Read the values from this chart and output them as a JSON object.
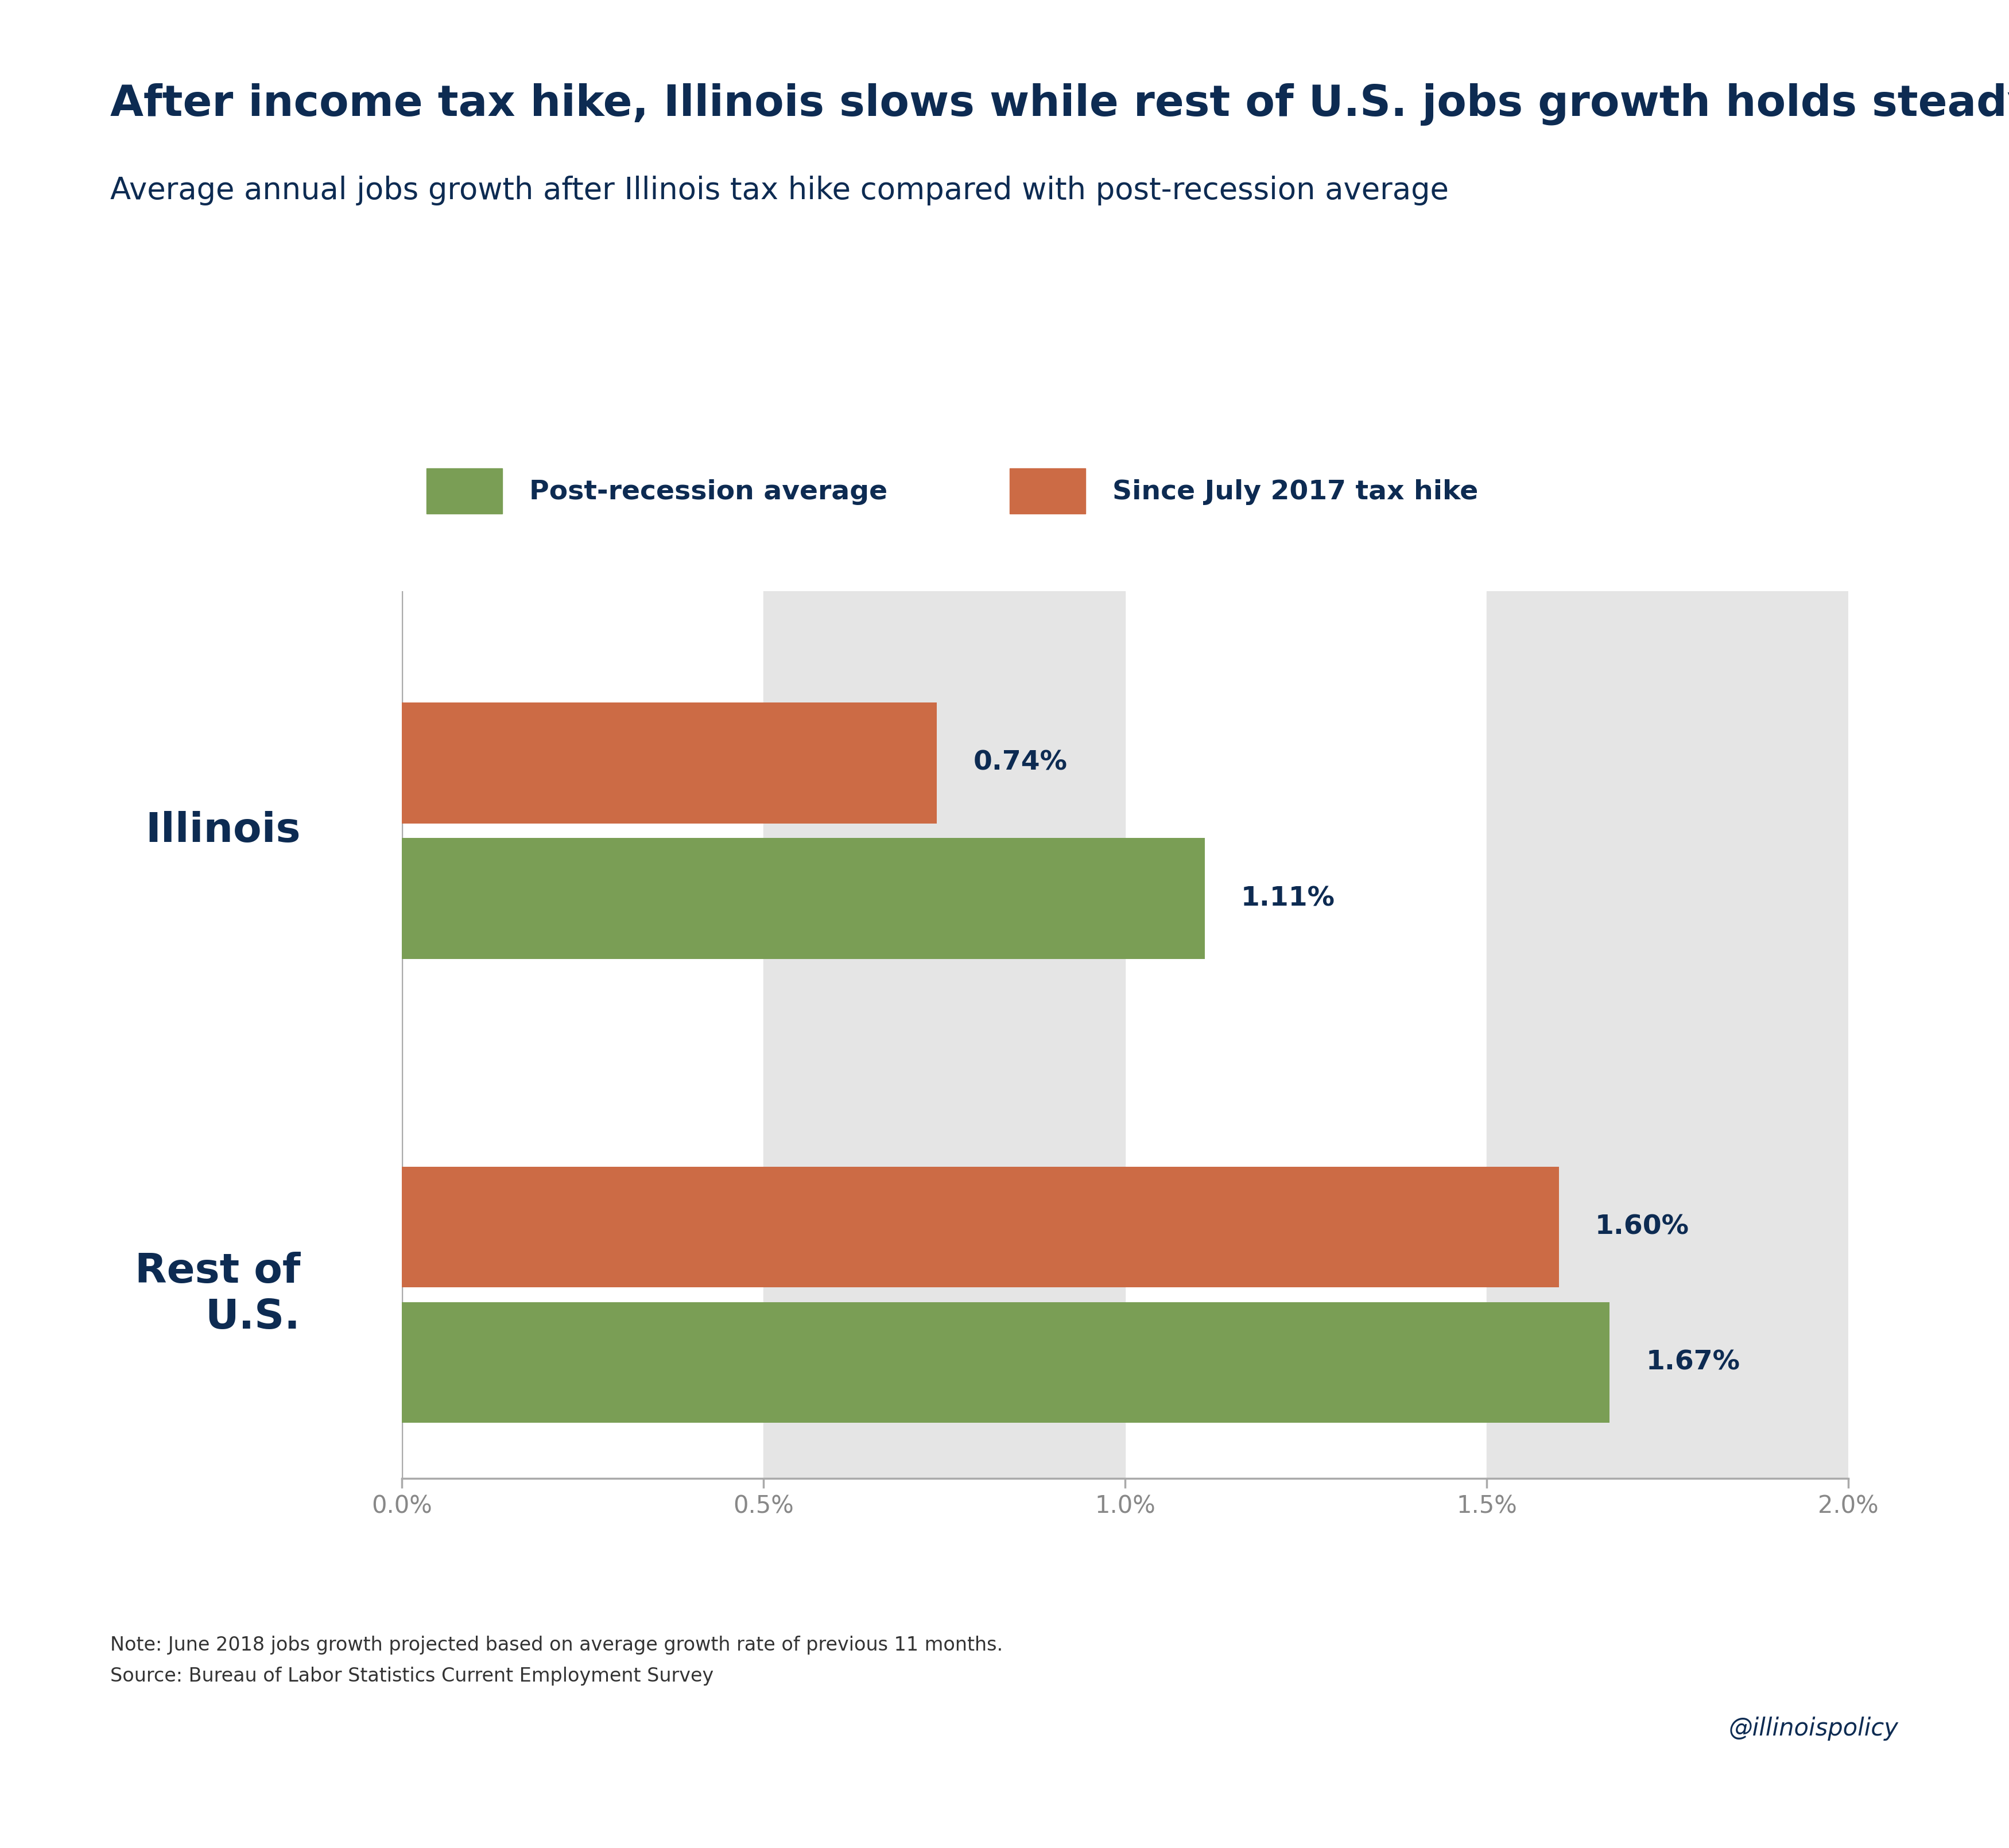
{
  "title": "After income tax hike, Illinois slows while rest of U.S. jobs growth holds steady",
  "subtitle": "Average annual jobs growth after Illinois tax hike compared with post-recession average",
  "post_recession": [
    1.11,
    1.67
  ],
  "since_tax_hike": [
    0.74,
    1.6
  ],
  "post_recession_labels": [
    "1.11%",
    "1.67%"
  ],
  "since_tax_hike_labels": [
    "0.74%",
    "1.60%"
  ],
  "color_green": "#7a9e55",
  "color_orange": "#cc6b45",
  "color_gray_bg": "#e5e5e5",
  "color_title": "#0d2b52",
  "color_tick": "#888888",
  "xlim_max": 2.0,
  "xticks": [
    0.0,
    0.5,
    1.0,
    1.5,
    2.0
  ],
  "xtick_labels": [
    "0.0%",
    "0.5%",
    "1.0%",
    "1.5%",
    "2.0%"
  ],
  "legend_green": "Post-recession average",
  "legend_orange": "Since July 2017 tax hike",
  "note": "Note: June 2018 jobs growth projected based on average growth rate of previous 11 months.",
  "source": "Source: Bureau of Labor Statistics Current Employment Survey",
  "handle": "@illinoispolicy",
  "background_color": "#ffffff"
}
